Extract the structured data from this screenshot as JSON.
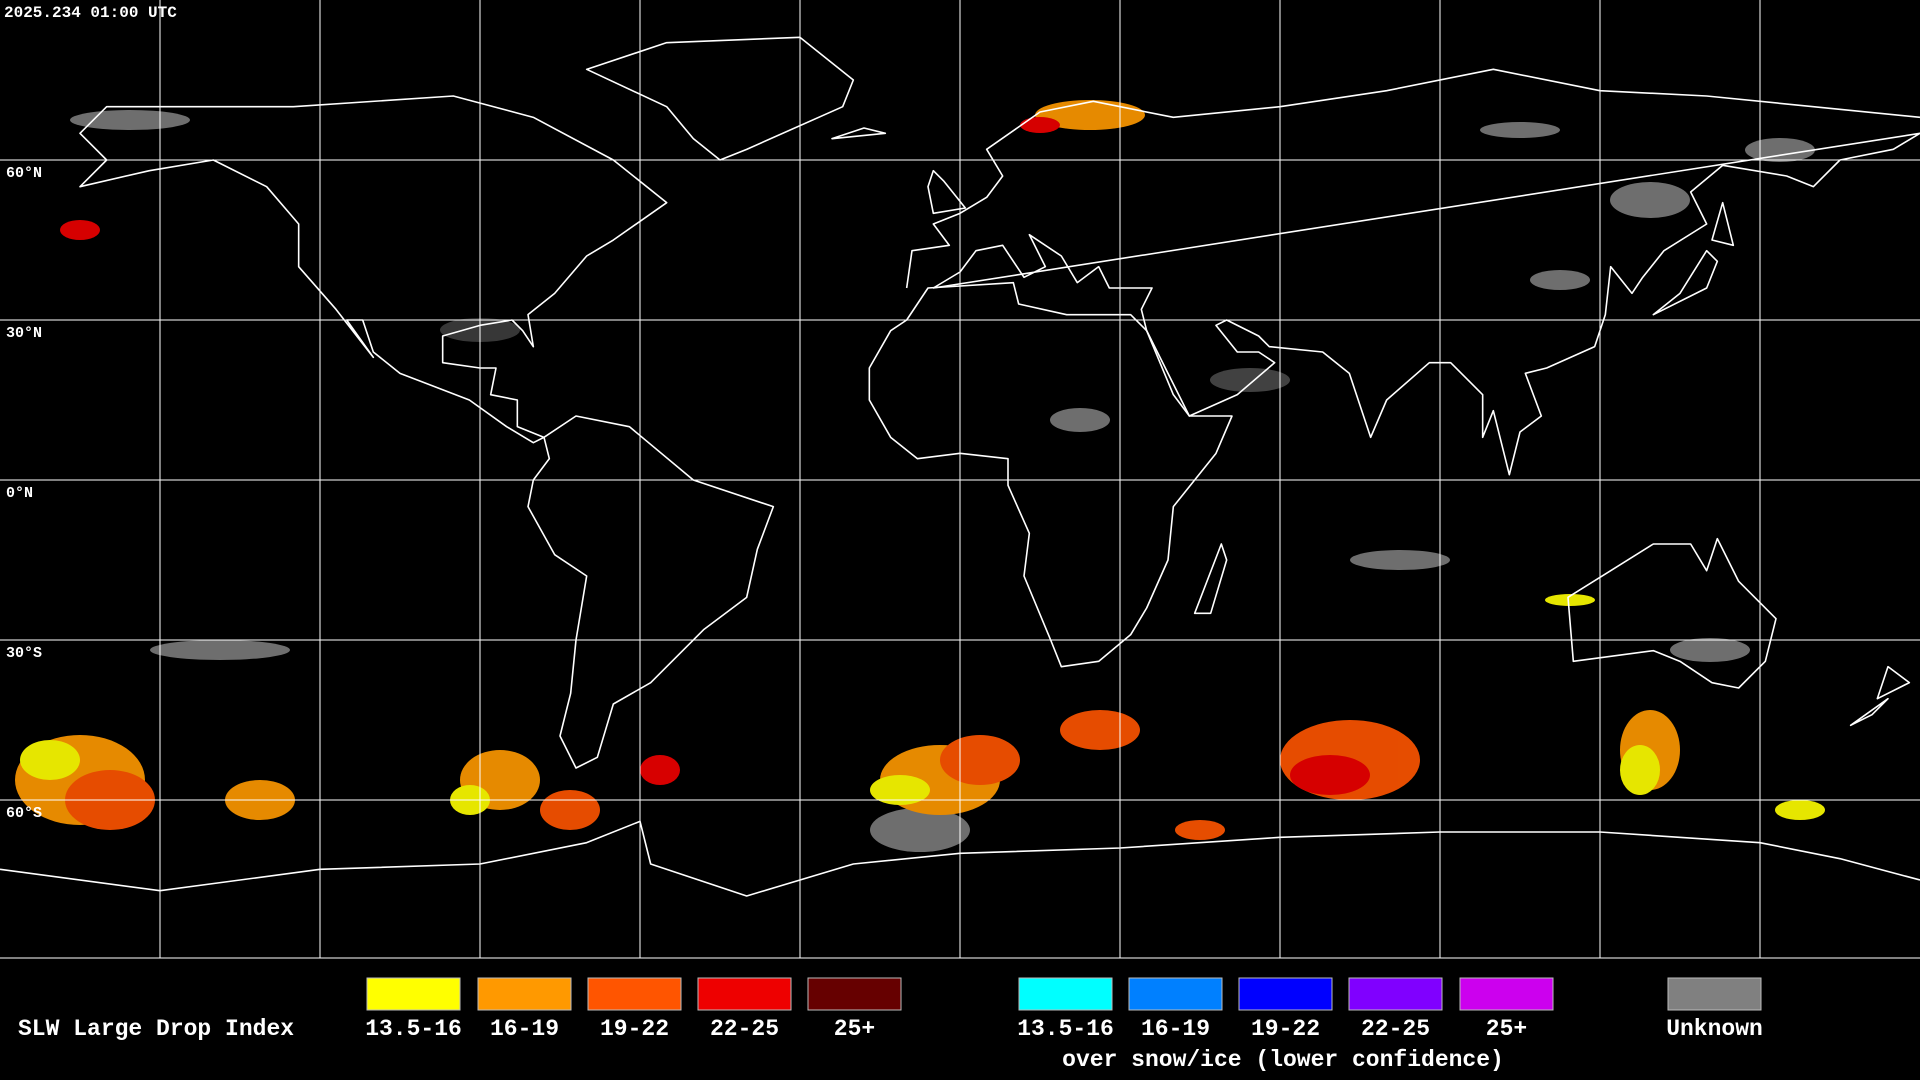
{
  "header": {
    "timestamp": "2025.234 01:00 UTC"
  },
  "map": {
    "lat_labels": [
      "60°N",
      "30°N",
      "0°N",
      "30°S",
      "60°S"
    ]
  },
  "legend": {
    "title": "SLW Large Drop Index",
    "groups": [
      {
        "items": [
          {
            "label": "13.5-16",
            "color": "#ffff00"
          },
          {
            "label": "16-19",
            "color": "#ff9900"
          },
          {
            "label": "19-22",
            "color": "#ff5500"
          },
          {
            "label": "22-25",
            "color": "#ee0000"
          },
          {
            "label": "25+",
            "color": "#660000"
          }
        ]
      },
      {
        "items": [
          {
            "label": "13.5-16",
            "color": "#00ffff"
          },
          {
            "label": "16-19",
            "color": "#0080ff"
          },
          {
            "label": "19-22",
            "color": "#0000ff"
          },
          {
            "label": "22-25",
            "color": "#8000ff"
          },
          {
            "label": "25+",
            "color": "#cc00ee"
          }
        ],
        "caption": "over snow/ice (lower confidence)"
      }
    ],
    "unknown": {
      "label": "Unknown",
      "color": "#808080"
    }
  }
}
